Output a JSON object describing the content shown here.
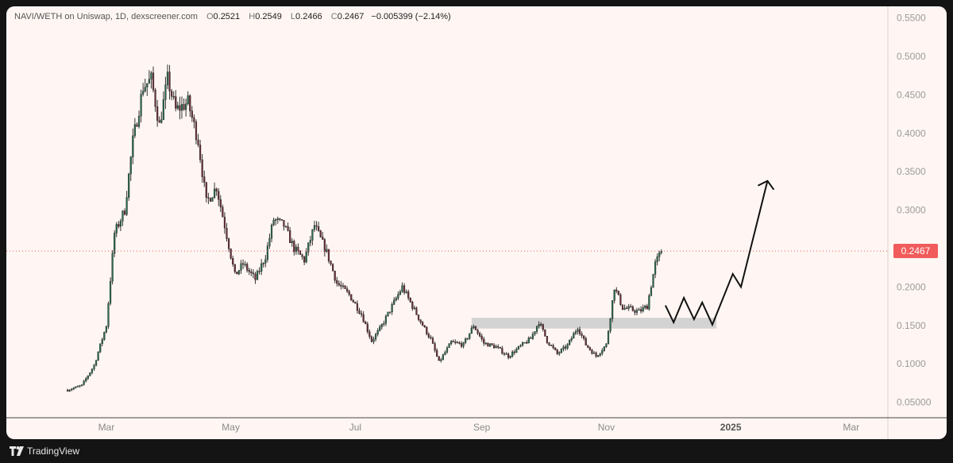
{
  "header": {
    "symbol": "NAVI/WETH on Uniswap, 1D, dexscreener.com",
    "open_label": "O",
    "open": "0.2521",
    "high_label": "H",
    "high": "0.2549",
    "low_label": "L",
    "low": "0.2466",
    "close_label": "C",
    "close": "0.2467",
    "change": "−0.005399 (−2.14%)"
  },
  "footer": {
    "brand": "TradingView"
  },
  "last_price_label": "0.2467",
  "colors": {
    "background": "#fff6f3",
    "candle_up": "#2a6b4f",
    "candle_down": "#6b2f38",
    "wick": "#333333",
    "price_tag": "#f15b5b",
    "zone": "#cccccc"
  },
  "chart_data": {
    "type": "candlestick",
    "y_axis": {
      "range": [
        0.03,
        0.565
      ],
      "ticks": [
        0.55,
        0.5,
        0.45,
        0.4,
        0.35,
        0.3,
        0.25,
        0.2,
        0.15,
        0.1,
        0.05
      ],
      "tick_labels": [
        "0.5500",
        "0.5000",
        "0.4500",
        "0.4000",
        "0.3500",
        "0.3000",
        "0.2500",
        "0.2000",
        "0.1500",
        "0.1000",
        "0.05000"
      ]
    },
    "x_axis": {
      "range": [
        "2024-01-12",
        "2025-03-19"
      ],
      "ticks": [
        "2024-03-01",
        "2024-05-01",
        "2024-07-01",
        "2024-09-01",
        "2024-11-01",
        "2025-01-01",
        "2025-03-01"
      ],
      "tick_labels": [
        "Mar",
        "May",
        "Jul",
        "Sep",
        "Nov",
        "2025",
        "Mar"
      ],
      "bold": [
        false,
        false,
        false,
        false,
        false,
        true,
        false
      ]
    },
    "last_price": 0.2467,
    "support_zone": {
      "from": "2024-08-27",
      "to": "2024-12-25",
      "low": 0.146,
      "high": 0.16
    },
    "projection_path": [
      [
        "2024-11-30",
        0.176
      ],
      [
        "2024-12-04",
        0.154
      ],
      [
        "2024-12-09",
        0.186
      ],
      [
        "2024-12-14",
        0.158
      ],
      [
        "2024-12-18",
        0.18
      ],
      [
        "2024-12-23",
        0.151
      ],
      [
        "2025-01-02",
        0.217
      ],
      [
        "2025-01-06",
        0.2
      ],
      [
        "2025-01-19",
        0.338
      ]
    ],
    "arrow_tip": [
      "2025-01-19",
      0.338
    ],
    "close_anchors": [
      [
        "2024-02-11",
        0.066
      ],
      [
        "2024-02-18",
        0.072
      ],
      [
        "2024-02-24",
        0.098
      ],
      [
        "2024-03-01",
        0.15
      ],
      [
        "2024-03-05",
        0.27
      ],
      [
        "2024-03-10",
        0.3
      ],
      [
        "2024-03-14",
        0.39
      ],
      [
        "2024-03-19",
        0.46
      ],
      [
        "2024-03-23",
        0.47
      ],
      [
        "2024-03-27",
        0.41
      ],
      [
        "2024-03-31",
        0.47
      ],
      [
        "2024-04-04",
        0.43
      ],
      [
        "2024-04-10",
        0.44
      ],
      [
        "2024-04-15",
        0.39
      ],
      [
        "2024-04-19",
        0.31
      ],
      [
        "2024-04-24",
        0.33
      ],
      [
        "2024-04-28",
        0.28
      ],
      [
        "2024-05-03",
        0.215
      ],
      [
        "2024-05-07",
        0.23
      ],
      [
        "2024-05-13",
        0.21
      ],
      [
        "2024-05-18",
        0.24
      ],
      [
        "2024-05-22",
        0.288
      ],
      [
        "2024-05-27",
        0.28
      ],
      [
        "2024-06-01",
        0.25
      ],
      [
        "2024-06-06",
        0.235
      ],
      [
        "2024-06-11",
        0.28
      ],
      [
        "2024-06-17",
        0.245
      ],
      [
        "2024-06-22",
        0.205
      ],
      [
        "2024-06-28",
        0.19
      ],
      [
        "2024-07-04",
        0.165
      ],
      [
        "2024-07-09",
        0.13
      ],
      [
        "2024-07-13",
        0.145
      ],
      [
        "2024-07-18",
        0.17
      ],
      [
        "2024-07-24",
        0.2
      ],
      [
        "2024-07-28",
        0.18
      ],
      [
        "2024-08-02",
        0.155
      ],
      [
        "2024-08-07",
        0.132
      ],
      [
        "2024-08-11",
        0.102
      ],
      [
        "2024-08-17",
        0.128
      ],
      [
        "2024-08-23",
        0.125
      ],
      [
        "2024-08-28",
        0.15
      ],
      [
        "2024-09-02",
        0.127
      ],
      [
        "2024-09-08",
        0.122
      ],
      [
        "2024-09-14",
        0.11
      ],
      [
        "2024-09-20",
        0.123
      ],
      [
        "2024-09-25",
        0.133
      ],
      [
        "2024-09-29",
        0.155
      ],
      [
        "2024-10-03",
        0.13
      ],
      [
        "2024-10-08",
        0.113
      ],
      [
        "2024-10-13",
        0.124
      ],
      [
        "2024-10-18",
        0.148
      ],
      [
        "2024-10-22",
        0.125
      ],
      [
        "2024-10-27",
        0.11
      ],
      [
        "2024-11-01",
        0.125
      ],
      [
        "2024-11-05",
        0.2
      ],
      [
        "2024-11-09",
        0.173
      ],
      [
        "2024-11-13",
        0.171
      ],
      [
        "2024-11-17",
        0.168
      ],
      [
        "2024-11-21",
        0.175
      ],
      [
        "2024-11-25",
        0.23
      ],
      [
        "2024-11-28",
        0.2467
      ]
    ]
  }
}
